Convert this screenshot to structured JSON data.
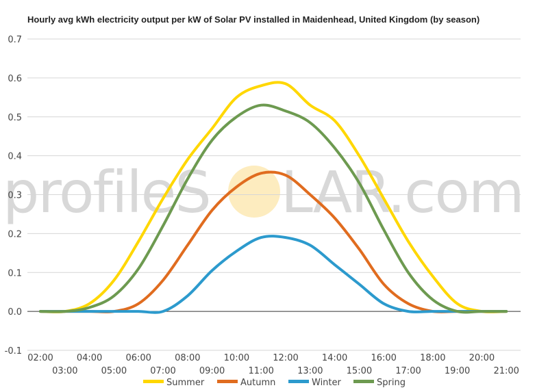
{
  "chart_data": {
    "type": "line",
    "title": "Hourly avg kWh electricity output per kW of Solar PV installed in Maidenhead, United Kingdom (by season)",
    "xlabel": "",
    "ylabel": "",
    "ylim": [
      -0.1,
      0.7
    ],
    "yticks": [
      "-0.1",
      "0.0",
      "0.1",
      "0.2",
      "0.3",
      "0.4",
      "0.5",
      "0.6",
      "0.7"
    ],
    "categories": [
      "02:00",
      "03:00",
      "04:00",
      "05:00",
      "06:00",
      "07:00",
      "08:00",
      "09:00",
      "10:00",
      "11:00",
      "12:00",
      "13:00",
      "14:00",
      "15:00",
      "16:00",
      "17:00",
      "18:00",
      "19:00",
      "20:00",
      "21:00"
    ],
    "series": [
      {
        "name": "Summer",
        "color": "#ffd700",
        "values": [
          0.0,
          0.0,
          0.02,
          0.08,
          0.18,
          0.29,
          0.39,
          0.47,
          0.55,
          0.58,
          0.585,
          0.53,
          0.49,
          0.4,
          0.29,
          0.18,
          0.09,
          0.02,
          0.0,
          0.0
        ]
      },
      {
        "name": "Autumn",
        "color": "#e06c1f",
        "values": [
          0.0,
          0.0,
          0.0,
          0.0,
          0.02,
          0.08,
          0.17,
          0.26,
          0.32,
          0.355,
          0.35,
          0.3,
          0.24,
          0.16,
          0.07,
          0.02,
          0.0,
          0.0,
          0.0,
          0.0
        ]
      },
      {
        "name": "Winter",
        "color": "#2c9acd",
        "values": [
          0.0,
          0.0,
          0.0,
          0.0,
          0.0,
          0.0,
          0.04,
          0.105,
          0.155,
          0.19,
          0.19,
          0.17,
          0.12,
          0.07,
          0.02,
          0.0,
          0.0,
          0.0,
          0.0,
          0.0
        ]
      },
      {
        "name": "Spring",
        "color": "#6d9a50",
        "values": [
          0.0,
          0.0,
          0.01,
          0.04,
          0.11,
          0.22,
          0.34,
          0.44,
          0.5,
          0.53,
          0.515,
          0.485,
          0.42,
          0.33,
          0.21,
          0.1,
          0.03,
          0.0,
          0.0,
          0.0
        ]
      }
    ],
    "grid": true,
    "legend_position": "bottom"
  },
  "watermark": {
    "text_before": "profileS",
    "text_after": "LAR.com",
    "sun_color": "#fde9b4"
  }
}
